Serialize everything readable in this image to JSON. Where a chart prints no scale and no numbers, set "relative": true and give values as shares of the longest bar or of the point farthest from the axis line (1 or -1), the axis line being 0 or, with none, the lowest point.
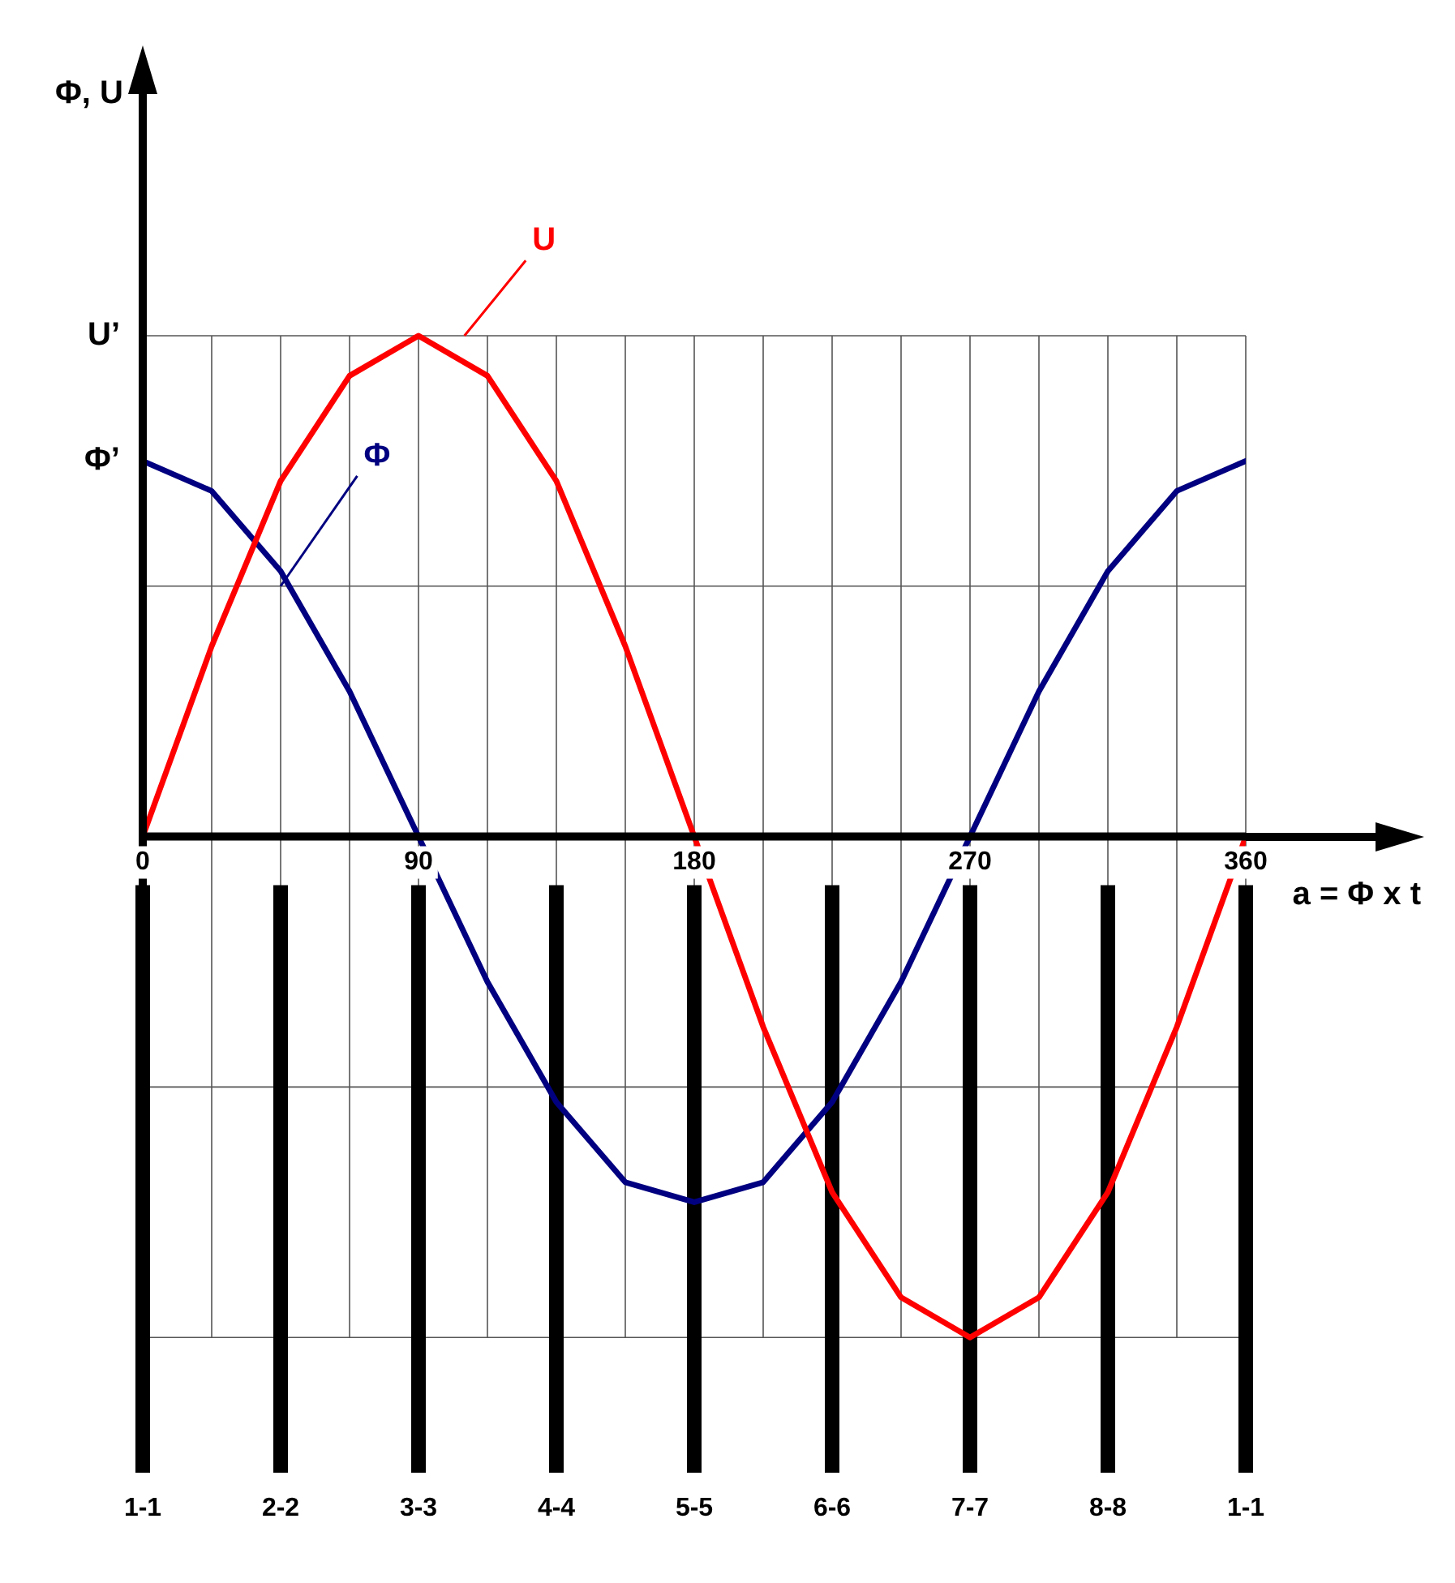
{
  "chart_data": {
    "type": "line",
    "relative": true,
    "xlabel": "a = Φ x t",
    "x": [
      0,
      22.5,
      45,
      67.5,
      90,
      112.5,
      135,
      157.5,
      180,
      202.5,
      225,
      247.5,
      270,
      292.5,
      315,
      337.5,
      360
    ],
    "xlim": [
      0,
      360
    ],
    "xticks": [
      0,
      {
        "value": 22.5,
        "label": null
      },
      {
        "value": 45,
        "label": null
      },
      {
        "value": 67.5,
        "label": null
      },
      90,
      {
        "value": 112.5,
        "label": null
      },
      {
        "value": 135,
        "label": null
      },
      {
        "value": 157.5,
        "label": null
      },
      180,
      {
        "value": 202.5,
        "label": null
      },
      {
        "value": 225,
        "label": null
      },
      {
        "value": 247.5,
        "label": null
      },
      270,
      {
        "value": 292.5,
        "label": null
      },
      {
        "value": 315,
        "label": null
      },
      {
        "value": 337.5,
        "label": null
      },
      360
    ],
    "series": [
      {
        "name": "U",
        "color": "#ff0000",
        "values": [
          0,
          0.38,
          0.71,
          0.92,
          1,
          0.92,
          0.71,
          0.38,
          0,
          -0.38,
          -0.71,
          -0.92,
          -1,
          -0.92,
          -0.71,
          -0.38,
          0
        ]
      },
      {
        "name": "Φ",
        "color": "#000080",
        "values": [
          0.75,
          0.69,
          0.53,
          0.29,
          0,
          -0.29,
          -0.53,
          -0.69,
          -0.73,
          -0.69,
          -0.53,
          -0.29,
          0,
          0.29,
          0.53,
          0.69,
          0.75
        ]
      }
    ],
    "annotations": [
      "U’",
      "Φ’",
      "1-1",
      "2-2",
      "3-3",
      "4-4",
      "5-5",
      "6-6",
      "7-7",
      "8-8",
      "1-1",
      "Φ, U"
    ],
    "ref_lines": [
      {
        "axis": "x",
        "value": 0
      },
      {
        "axis": "x",
        "value": 45
      },
      {
        "axis": "x",
        "value": 90
      },
      {
        "axis": "x",
        "value": 135
      },
      {
        "axis": "x",
        "value": 180
      },
      {
        "axis": "x",
        "value": 225
      },
      {
        "axis": "x",
        "value": 270
      },
      {
        "axis": "x",
        "value": 315
      },
      {
        "axis": "x",
        "value": 360
      }
    ],
    "grid": true,
    "legend": false
  }
}
